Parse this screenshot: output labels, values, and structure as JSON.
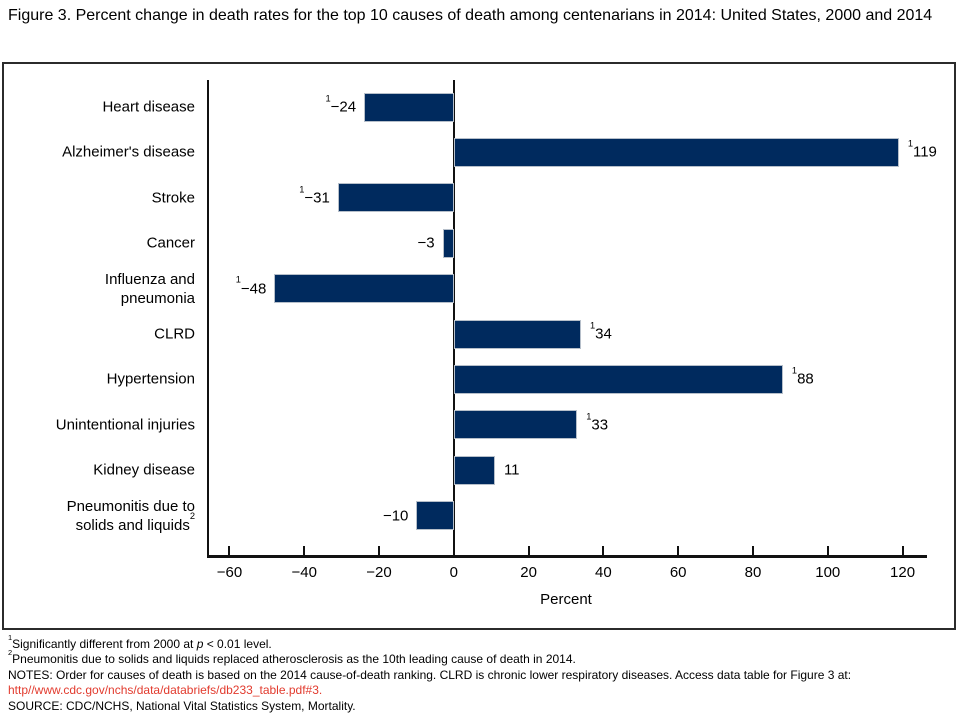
{
  "title": "Figure 3. Percent change in death rates for the top 10 causes of death among centenarians in 2014: United States, 2000 and 2014",
  "chart_data": {
    "type": "bar",
    "orientation": "horizontal",
    "title": "Figure 3. Percent change in death rates for the top 10 causes of death among centenarians in 2014: United States, 2000 and 2014",
    "xlabel": "Percent",
    "xlim": [
      -66,
      126
    ],
    "grid": false,
    "bar_color": "#002a5e",
    "ticks": [
      -60,
      -40,
      -20,
      0,
      20,
      40,
      60,
      80,
      100,
      120
    ],
    "tick_labels": [
      "−60",
      "−40",
      "−20",
      "0",
      "20",
      "40",
      "60",
      "80",
      "100",
      "120"
    ],
    "categories": [
      "Heart disease",
      "Alzheimer's disease",
      "Stroke",
      "Cancer",
      "Influenza and pneumonia",
      "CLRD",
      "Hypertension",
      "Unintentional injuries",
      "Kidney disease",
      "Pneumonitis due to solids and liquids"
    ],
    "values": [
      -24,
      119,
      -31,
      -3,
      -48,
      34,
      88,
      33,
      11,
      -10
    ],
    "bars": [
      {
        "label_lines": [
          "Heart disease"
        ],
        "label_sup": "",
        "value": -24,
        "value_label": "−24",
        "sup": "1"
      },
      {
        "label_lines": [
          "Alzheimer's disease"
        ],
        "label_sup": "",
        "value": 119,
        "value_label": "119",
        "sup": "1"
      },
      {
        "label_lines": [
          "Stroke"
        ],
        "label_sup": "",
        "value": -31,
        "value_label": "−31",
        "sup": "1"
      },
      {
        "label_lines": [
          "Cancer"
        ],
        "label_sup": "",
        "value": -3,
        "value_label": "−3",
        "sup": ""
      },
      {
        "label_lines": [
          "Influenza and",
          "pneumonia"
        ],
        "label_sup": "",
        "value": -48,
        "value_label": "−48",
        "sup": "1"
      },
      {
        "label_lines": [
          "CLRD"
        ],
        "label_sup": "",
        "value": 34,
        "value_label": "34",
        "sup": "1"
      },
      {
        "label_lines": [
          "Hypertension"
        ],
        "label_sup": "",
        "value": 88,
        "value_label": "88",
        "sup": "1"
      },
      {
        "label_lines": [
          "Unintentional injuries"
        ],
        "label_sup": "",
        "value": 33,
        "value_label": "33",
        "sup": "1"
      },
      {
        "label_lines": [
          "Kidney disease"
        ],
        "label_sup": "",
        "value": 11,
        "value_label": "11",
        "sup": ""
      },
      {
        "label_lines": [
          "Pneumonitis due to",
          "solids and liquids"
        ],
        "label_sup": "2",
        "value": -10,
        "value_label": "−10",
        "sup": ""
      }
    ]
  },
  "footnotes": {
    "fn1_sup": "1",
    "fn1_pre": "Significantly different from 2000 at ",
    "fn1_italic": "p",
    "fn1_post": " < 0.01 level.",
    "fn2_sup": "2",
    "fn2_text": "Pneumonitis due to solids and liquids replaced atherosclerosis as the 10th leading cause of death in 2014.",
    "notes_text": "NOTES: Order for causes of death is based on the 2014 cause-of-death ranking. CLRD is chronic lower respiratory diseases. Access data table for Figure 3 at:",
    "link_text": "http//www.cdc.gov/nchs/data/databriefs/db233_table.pdf#3.",
    "source_text": "SOURCE: CDC/NCHS, National Vital Statistics System, Mortality."
  }
}
